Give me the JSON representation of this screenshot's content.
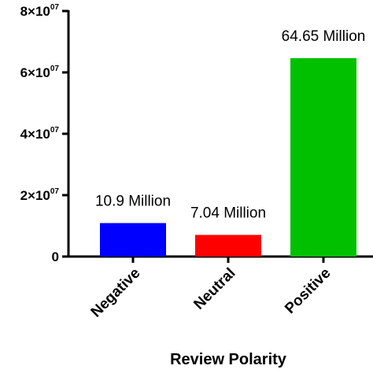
{
  "chart_data": {
    "type": "bar",
    "categories": [
      "Negative",
      "Neutral",
      "Positive"
    ],
    "values": [
      10900000,
      7040000,
      64650000
    ],
    "data_labels": [
      "10.9 Million",
      "7.04 Million",
      "64.65 Million"
    ],
    "colors": [
      "#0000ff",
      "#ff0000",
      "#00c000"
    ],
    "title": "",
    "xlabel": "Review Polarity",
    "ylabel": "",
    "ylim": [
      0,
      80000000
    ],
    "yticks": [
      {
        "value": 0,
        "mantissa": "0",
        "exponent": ""
      },
      {
        "value": 20000000,
        "mantissa": "2×10",
        "exponent": "07"
      },
      {
        "value": 40000000,
        "mantissa": "4×10",
        "exponent": "07"
      },
      {
        "value": 60000000,
        "mantissa": "6×10",
        "exponent": "07"
      },
      {
        "value": 80000000,
        "mantissa": "8×10",
        "exponent": "07"
      }
    ],
    "grid": false,
    "legend": "none"
  }
}
